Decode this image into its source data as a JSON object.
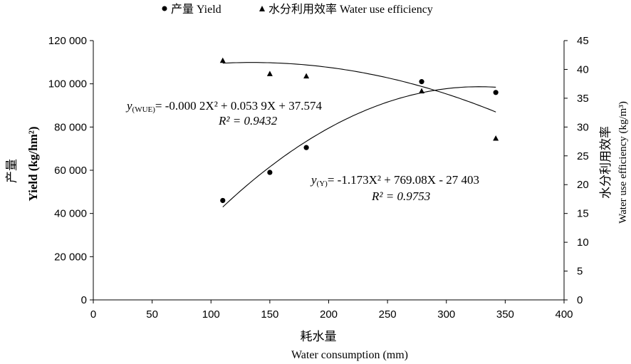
{
  "legend": [
    {
      "marker": "circle",
      "label": "产量 Yield"
    },
    {
      "marker": "triangle",
      "label": "水分利用效率 Water use efficiency"
    }
  ],
  "chart_data": {
    "type": "scatter",
    "x_axis": {
      "label_cn": "耗水量",
      "label_en": "Water consumption (mm)",
      "range": [
        0,
        400
      ],
      "ticks": [
        0,
        50,
        100,
        150,
        200,
        250,
        300,
        350,
        400
      ]
    },
    "y_axis_left": {
      "label_cn": "产量",
      "label_en": "Yield (kg/hm²)",
      "range": [
        0,
        120000
      ],
      "tick_labels": [
        "0",
        "20 000",
        "40 000",
        "60 000",
        "80 000",
        "100 000",
        "120 000"
      ]
    },
    "y_axis_right": {
      "label_cn": "水分利用效率",
      "label_en": "Water use efficiency (kg/m³)",
      "range": [
        0,
        45
      ],
      "ticks": [
        0,
        5,
        10,
        15,
        20,
        25,
        30,
        35,
        40,
        45
      ]
    },
    "series": [
      {
        "name": "产量 Yield",
        "marker": "circle",
        "axis": "left",
        "x": [
          110,
          150,
          181,
          279,
          342
        ],
        "y": [
          46000,
          59000,
          70500,
          101000,
          96000
        ],
        "fit": {
          "a": -1.173,
          "b": 769.08,
          "c": -27403
        }
      },
      {
        "name": "水分利用效率 Water use efficiency",
        "marker": "triangle",
        "axis": "right",
        "x": [
          110,
          150,
          181,
          279,
          342
        ],
        "y": [
          41.5,
          39.2,
          38.8,
          36.2,
          28.0
        ],
        "fit": {
          "a": -0.0002,
          "b": 0.0539,
          "c": 37.574
        }
      }
    ],
    "annotations": [
      {
        "label": "y(WUE)",
        "equation": "= -0.000 2X² + 0.053 9X + 37.574",
        "r2": "R² = 0.9432"
      },
      {
        "label": "y(Y)",
        "equation": "= -1.173X² + 769.08X - 27 403",
        "r2": "R² = 0.9753"
      }
    ]
  }
}
